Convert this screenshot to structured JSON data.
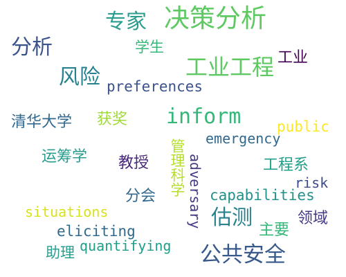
{
  "words": [
    {
      "text": "决策分析",
      "color": "#5ec962"
    },
    {
      "text": "专家",
      "color": "#2a9d8f"
    },
    {
      "text": "分析",
      "color": "#3b528b"
    },
    {
      "text": "学生",
      "color": "#35b779"
    },
    {
      "text": "工业工程",
      "color": "#5ec962"
    },
    {
      "text": "工业",
      "color": "#440154"
    },
    {
      "text": "风险",
      "color": "#26828e"
    },
    {
      "text": "preferences",
      "color": "#3b528b"
    },
    {
      "text": "清华大学",
      "color": "#31688e"
    },
    {
      "text": "获奖",
      "color": "#a0da39"
    },
    {
      "text": "inform",
      "color": "#35b779"
    },
    {
      "text": "public",
      "color": "#fde725"
    },
    {
      "text": "emergency",
      "color": "#31688e"
    },
    {
      "text": "运筹学",
      "color": "#2a9d8f"
    },
    {
      "text": "教授",
      "color": "#482878"
    },
    {
      "text": "管理科学",
      "color": "#b5de2b"
    },
    {
      "text": "adversary",
      "color": "#443983"
    },
    {
      "text": "工程系",
      "color": "#1f9e89"
    },
    {
      "text": "risk",
      "color": "#3e4a89"
    },
    {
      "text": "capabilities",
      "color": "#21918c"
    },
    {
      "text": "分会",
      "color": "#31688e"
    },
    {
      "text": "situations",
      "color": "#d8e219"
    },
    {
      "text": "估测",
      "color": "#26828e"
    },
    {
      "text": "领域",
      "color": "#443983"
    },
    {
      "text": "eliciting",
      "color": "#31688e"
    },
    {
      "text": "主要",
      "color": "#35b779"
    },
    {
      "text": "quantifying",
      "color": "#1f9e89"
    },
    {
      "text": "助理",
      "color": "#2a9d8f"
    },
    {
      "text": "公共安全",
      "color": "#38598c"
    }
  ]
}
